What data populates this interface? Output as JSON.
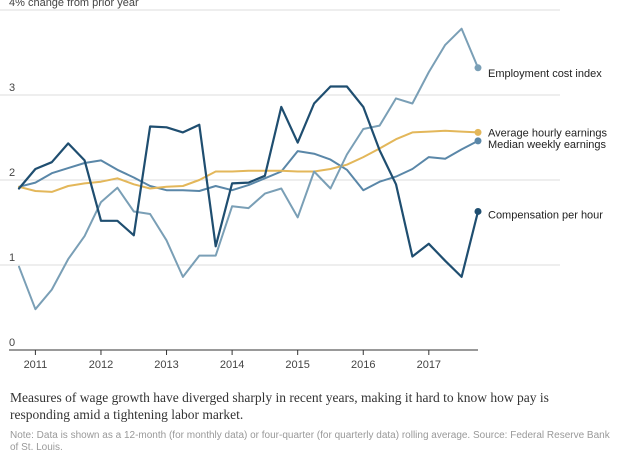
{
  "caption": "Measures of wage growth have diverged sharply in recent years, making it hard to know how pay is responding amid a tightening labor market.",
  "note": "Note: Data is shown as a 12-month (for monthly data) or four-quarter (for quarterly data) rolling average. Source: Federal Reserve Bank of St. Louis.",
  "chart_data": {
    "type": "line",
    "title": "",
    "ylabel": "% change from prior year",
    "y_ticks": [
      {
        "value": 4,
        "label": "4% change from prior year"
      },
      {
        "value": 3,
        "label": "3"
      },
      {
        "value": 2,
        "label": "2"
      },
      {
        "value": 1,
        "label": "1"
      },
      {
        "value": 0,
        "label": "0"
      }
    ],
    "x_ticks": [
      "2011",
      "2012",
      "2013",
      "2014",
      "2015",
      "2016",
      "2017"
    ],
    "xlim": [
      2010.75,
      2017.75
    ],
    "ylim": [
      0,
      4
    ],
    "grid": "horizontal",
    "series": [
      {
        "name": "Median weekly earnings",
        "color": "#5a87a8",
        "x": [
          2010.75,
          2011.0,
          2011.25,
          2011.5,
          2011.75,
          2012.0,
          2012.25,
          2012.5,
          2012.75,
          2013.0,
          2013.25,
          2013.5,
          2013.75,
          2014.0,
          2014.25,
          2014.5,
          2014.75,
          2015.0,
          2015.25,
          2015.5,
          2015.75,
          2016.0,
          2016.25,
          2016.5,
          2016.75,
          2017.0,
          2017.25,
          2017.5,
          2017.75
        ],
        "y": [
          1.92,
          1.97,
          2.08,
          2.14,
          2.2,
          2.23,
          2.12,
          2.03,
          1.93,
          1.88,
          1.88,
          1.87,
          1.93,
          1.88,
          1.94,
          2.02,
          2.1,
          2.34,
          2.31,
          2.24,
          2.12,
          1.88,
          1.98,
          2.04,
          2.13,
          2.27,
          2.25,
          2.36,
          2.46
        ]
      },
      {
        "name": "Average hourly earnings",
        "color": "#e3b75a",
        "x": [
          2010.75,
          2011.0,
          2011.25,
          2011.5,
          2011.75,
          2012.0,
          2012.25,
          2012.5,
          2012.75,
          2013.0,
          2013.25,
          2013.5,
          2013.75,
          2014.0,
          2014.25,
          2014.5,
          2014.75,
          2015.0,
          2015.25,
          2015.5,
          2015.75,
          2016.0,
          2016.25,
          2016.5,
          2016.75,
          2017.0,
          2017.25,
          2017.5,
          2017.75
        ],
        "y": [
          1.92,
          1.87,
          1.86,
          1.93,
          1.96,
          1.98,
          2.02,
          1.95,
          1.9,
          1.92,
          1.93,
          2.0,
          2.1,
          2.1,
          2.11,
          2.11,
          2.11,
          2.1,
          2.1,
          2.13,
          2.18,
          2.27,
          2.37,
          2.48,
          2.56,
          2.57,
          2.58,
          2.57,
          2.56
        ]
      },
      {
        "name": "Employment cost index",
        "color": "#7a9fb6",
        "x": [
          2010.75,
          2011.0,
          2011.25,
          2011.5,
          2011.75,
          2012.0,
          2012.25,
          2012.5,
          2012.75,
          2013.0,
          2013.25,
          2013.5,
          2013.75,
          2014.0,
          2014.25,
          2014.5,
          2014.75,
          2015.0,
          2015.25,
          2015.5,
          2015.75,
          2016.0,
          2016.25,
          2016.5,
          2016.75,
          2017.0,
          2017.25,
          2017.5,
          2017.75
        ],
        "y": [
          0.98,
          0.48,
          0.71,
          1.07,
          1.34,
          1.74,
          1.91,
          1.63,
          1.6,
          1.29,
          0.86,
          1.11,
          1.11,
          1.69,
          1.67,
          1.84,
          1.9,
          1.56,
          2.1,
          1.9,
          2.3,
          2.6,
          2.64,
          2.96,
          2.9,
          3.27,
          3.59,
          3.78,
          3.32
        ]
      },
      {
        "name": "Compensation per hour",
        "color": "#1f4e70",
        "x": [
          2010.75,
          2011.0,
          2011.25,
          2011.5,
          2011.75,
          2012.0,
          2012.25,
          2012.5,
          2012.75,
          2013.0,
          2013.25,
          2013.5,
          2013.75,
          2014.0,
          2014.25,
          2014.5,
          2014.75,
          2015.0,
          2015.25,
          2015.5,
          2015.75,
          2016.0,
          2016.25,
          2016.5,
          2016.75,
          2017.0,
          2017.25,
          2017.5,
          2017.75
        ],
        "y": [
          1.9,
          2.13,
          2.21,
          2.43,
          2.23,
          1.52,
          1.52,
          1.35,
          2.63,
          2.62,
          2.56,
          2.65,
          1.22,
          1.96,
          1.97,
          2.05,
          2.86,
          2.44,
          2.9,
          3.1,
          3.1,
          2.86,
          2.35,
          1.95,
          1.1,
          1.25,
          1.05,
          0.86,
          1.63
        ]
      }
    ],
    "end_labels": [
      {
        "series": "Median weekly earnings",
        "text": "Median weekly earnings"
      },
      {
        "series": "Average hourly earnings",
        "text": "Average hourly earnings"
      },
      {
        "series": "Employment cost index",
        "text": "Employment cost index"
      },
      {
        "series": "Compensation per hour",
        "text": "Compensation per hour"
      }
    ]
  }
}
